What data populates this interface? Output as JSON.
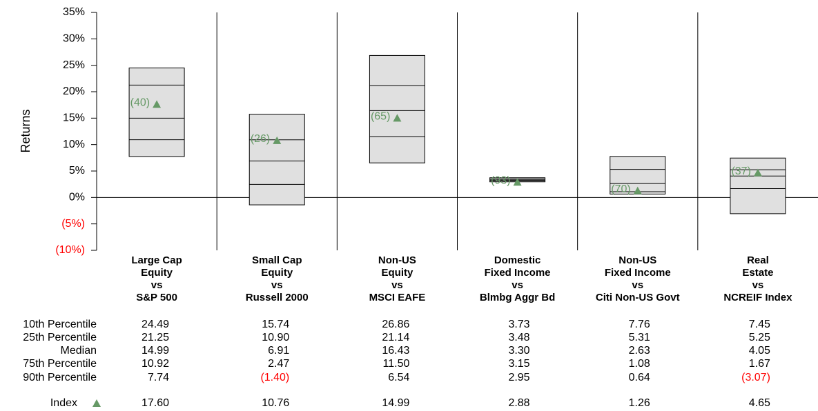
{
  "chart_data": {
    "type": "floating_bar",
    "ylabel": "Returns",
    "ylim": [
      -10,
      35
    ],
    "yticks": [
      {
        "value": 35,
        "label": "35%"
      },
      {
        "value": 30,
        "label": "30%"
      },
      {
        "value": 25,
        "label": "25%"
      },
      {
        "value": 20,
        "label": "20%"
      },
      {
        "value": 15,
        "label": "15%"
      },
      {
        "value": 10,
        "label": "10%"
      },
      {
        "value": 5,
        "label": "5%"
      },
      {
        "value": 0,
        "label": "0%"
      },
      {
        "value": -5,
        "label": "(5%)"
      },
      {
        "value": -10,
        "label": "(10%)"
      }
    ],
    "negative_color": "#ff0000",
    "box_color": "#e0e0e0",
    "categories": [
      [
        "Large Cap",
        "Equity",
        "vs",
        "S&P 500"
      ],
      [
        "Small Cap",
        "Equity",
        "vs",
        "Russell 2000"
      ],
      [
        "Non-US",
        "Equity",
        "vs",
        "MSCI EAFE"
      ],
      [
        "Domestic",
        "Fixed Income",
        "vs",
        "Blmbg Aggr Bd"
      ],
      [
        "Non-US",
        "Fixed Income",
        "vs",
        "Citi Non-US Govt"
      ],
      [
        "Real",
        "Estate",
        "vs",
        "NCREIF Index"
      ]
    ],
    "series": [
      {
        "name": "10th Percentile",
        "values": [
          24.49,
          15.74,
          26.86,
          3.73,
          7.76,
          7.45
        ],
        "value_labels": [
          "24.49",
          "15.74",
          "26.86",
          "3.73",
          "7.76",
          "7.45"
        ]
      },
      {
        "name": "25th Percentile",
        "values": [
          21.25,
          10.9,
          21.14,
          3.48,
          5.31,
          5.25
        ],
        "value_labels": [
          "21.25",
          "10.90",
          "21.14",
          "3.48",
          "5.31",
          "5.25"
        ]
      },
      {
        "name": "Median",
        "values": [
          14.99,
          6.91,
          16.43,
          3.3,
          2.63,
          4.05
        ],
        "value_labels": [
          "14.99",
          "6.91",
          "16.43",
          "3.30",
          "2.63",
          "4.05"
        ]
      },
      {
        "name": "75th Percentile",
        "values": [
          10.92,
          2.47,
          11.5,
          3.15,
          1.08,
          1.67
        ],
        "value_labels": [
          "10.92",
          "2.47",
          "11.50",
          "3.15",
          "1.08",
          "1.67"
        ]
      },
      {
        "name": "90th Percentile",
        "values": [
          7.74,
          -1.4,
          6.54,
          2.95,
          0.64,
          -3.07
        ],
        "value_labels": [
          "7.74",
          "(1.40)",
          "6.54",
          "2.95",
          "0.64",
          "(3.07)"
        ]
      }
    ],
    "index": {
      "name": "Index",
      "color": "#669966",
      "values": [
        17.6,
        10.76,
        14.99,
        2.88,
        1.26,
        4.65
      ],
      "value_labels": [
        "17.60",
        "10.76",
        "14.99",
        "2.88",
        "1.26",
        "4.65"
      ],
      "rank_labels": [
        "(40)",
        "(26)",
        "(65)",
        "(93)",
        "(70)",
        "(37)"
      ]
    }
  }
}
